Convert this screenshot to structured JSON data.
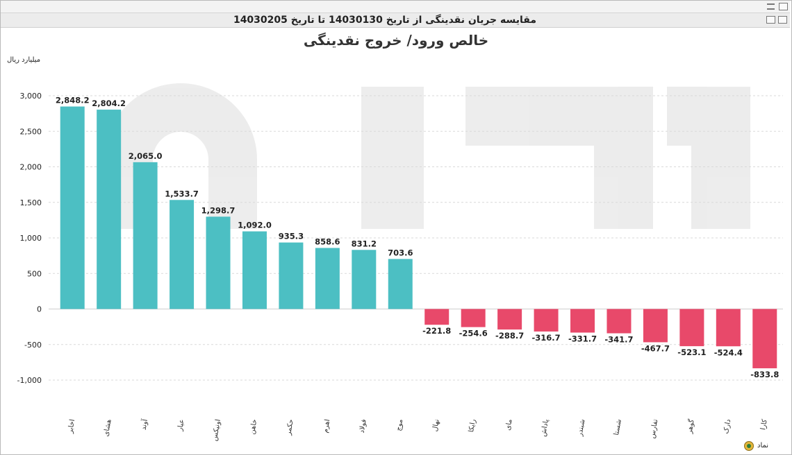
{
  "window": {
    "title": "مقایسه جریان نقدینگی از تاریخ 14030130 تا تاریخ 14030205"
  },
  "icons": [
    "maximize-icon",
    "collapse-icon",
    "print-icon",
    "export-icon",
    "symbol-settings-icon"
  ],
  "footer": {
    "symbol_label": "نماد"
  },
  "chart_data": {
    "type": "bar",
    "title": "خالص ورود/ خروج نقدینگی",
    "ylabel": "میلیارد ریال",
    "ylim": [
      -1000,
      3000
    ],
    "yticks": [
      3000,
      2500,
      2000,
      1500,
      1000,
      500,
      0,
      -500,
      -1000
    ],
    "ytick_labels": [
      "3,000",
      "2,500",
      "2,000",
      "1,500",
      "1,000",
      "500",
      "0",
      "-500",
      "-1,000"
    ],
    "grid": true,
    "colors": {
      "positive": "#4cbfc3",
      "negative": "#e8496a"
    },
    "categories": [
      "اخابر",
      "هشای",
      "آوند",
      "عیار",
      "اونیکس",
      "خاهن",
      "حکمر",
      "اهرم",
      "فولاد",
      "موج",
      "نهال",
      "رایکا",
      "مای",
      "پاداش",
      "شبندر",
      "شستا",
      "تفارس",
      "گوهر",
      "دارک",
      "کارا"
    ],
    "values": [
      2848.2,
      2804.2,
      2065.0,
      1533.7,
      1298.7,
      1092.0,
      935.3,
      858.6,
      831.2,
      703.6,
      -221.8,
      -254.6,
      -288.7,
      -316.7,
      -331.7,
      -341.7,
      -467.7,
      -523.1,
      -524.4,
      -833.8
    ],
    "value_labels": [
      "2,848.2",
      "2,804.2",
      "2,065.0",
      "1,533.7",
      "1,298.7",
      "1,092.0",
      "935.3",
      "858.6",
      "831.2",
      "703.6",
      "-221.8",
      "-254.6",
      "-288.7",
      "-316.7",
      "-331.7",
      "-341.7",
      "-467.7",
      "-523.1",
      "-524.4",
      "-833.8"
    ]
  }
}
